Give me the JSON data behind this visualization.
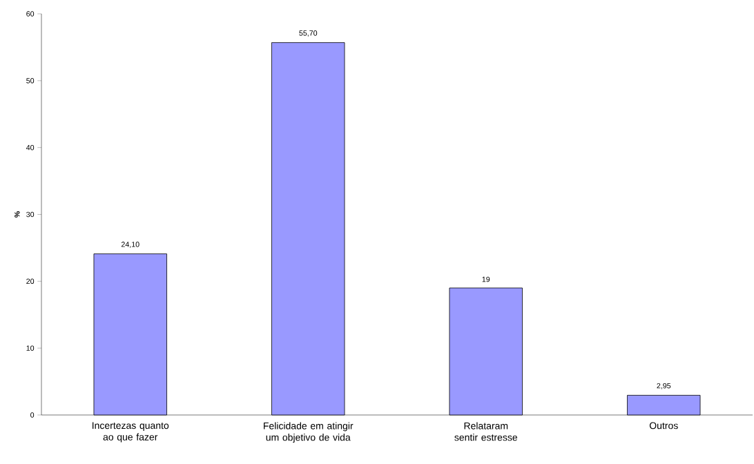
{
  "chart_data": {
    "type": "bar",
    "ylabel": "%",
    "categories": [
      "Incertezas quanto ao que fazer",
      "Felicidade em atingir um objetivo de vida",
      "Relataram sentir estresse",
      "Outros"
    ],
    "values": [
      24.1,
      55.7,
      19,
      2.95
    ],
    "value_labels": [
      "24,10",
      "55,70",
      "19",
      "2,95"
    ],
    "color": "#9999ff",
    "ylim": [
      0,
      60
    ],
    "yticks": [
      0,
      10,
      20,
      30,
      40,
      50,
      60
    ]
  }
}
